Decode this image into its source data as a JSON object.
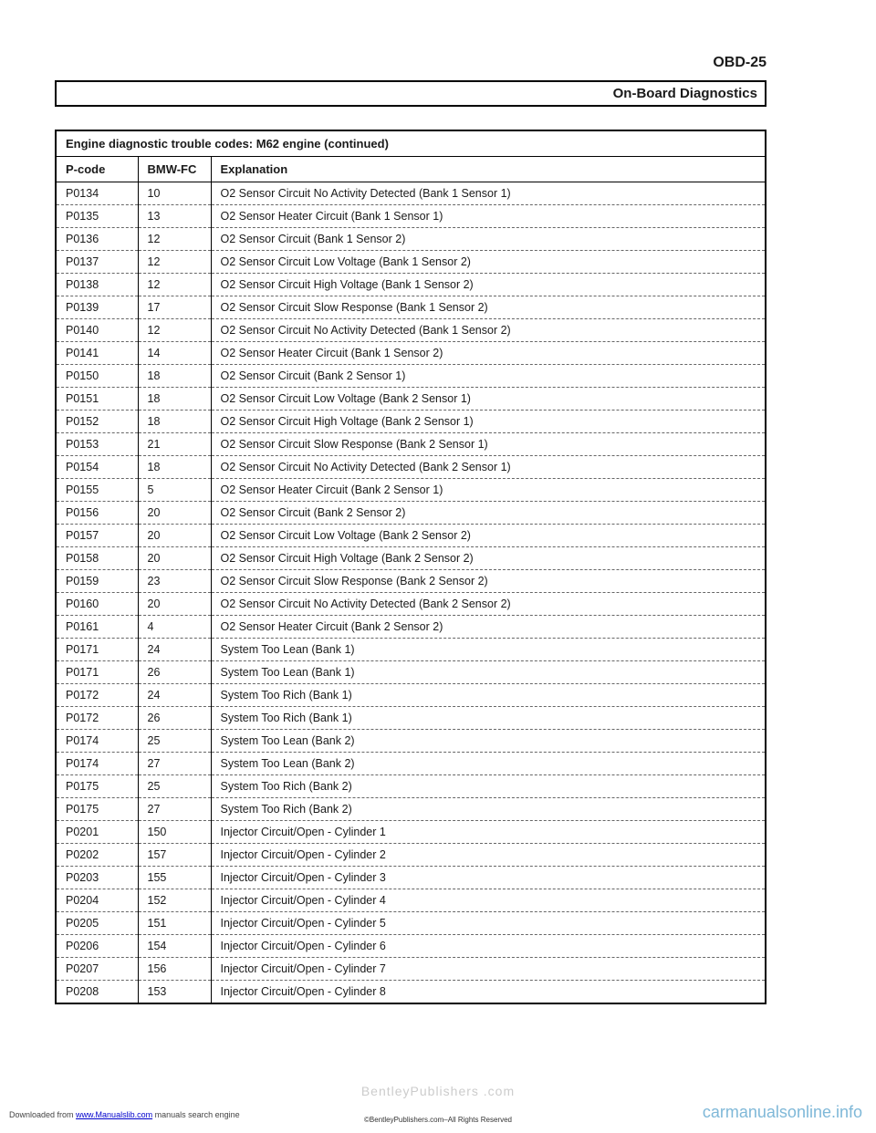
{
  "header": {
    "page_id": "OBD-25",
    "section_title": "On-Board Diagnostics"
  },
  "table": {
    "title": "Engine diagnostic trouble codes: M62 engine (continued)",
    "columns": [
      "P-code",
      "BMW-FC",
      "Explanation"
    ],
    "rows": [
      [
        "P0134",
        "10",
        "O2 Sensor Circuit No Activity Detected (Bank 1 Sensor 1)"
      ],
      [
        "P0135",
        "13",
        "O2 Sensor Heater Circuit (Bank 1 Sensor 1)"
      ],
      [
        "P0136",
        "12",
        "O2 Sensor Circuit (Bank 1 Sensor 2)"
      ],
      [
        "P0137",
        "12",
        "O2 Sensor Circuit Low Voltage (Bank 1 Sensor 2)"
      ],
      [
        "P0138",
        "12",
        "O2 Sensor Circuit High Voltage (Bank 1 Sensor 2)"
      ],
      [
        "P0139",
        "17",
        "O2 Sensor Circuit Slow Response (Bank 1 Sensor 2)"
      ],
      [
        "P0140",
        "12",
        "O2 Sensor Circuit No Activity Detected (Bank 1 Sensor 2)"
      ],
      [
        "P0141",
        "14",
        "O2 Sensor Heater Circuit (Bank 1 Sensor 2)"
      ],
      [
        "P0150",
        "18",
        "O2 Sensor Circuit (Bank 2 Sensor 1)"
      ],
      [
        "P0151",
        "18",
        "O2 Sensor Circuit Low Voltage (Bank 2 Sensor 1)"
      ],
      [
        "P0152",
        "18",
        "O2 Sensor Circuit High Voltage (Bank 2 Sensor 1)"
      ],
      [
        "P0153",
        "21",
        "O2 Sensor Circuit Slow Response (Bank 2 Sensor 1)"
      ],
      [
        "P0154",
        "18",
        "O2 Sensor Circuit No Activity Detected (Bank 2 Sensor 1)"
      ],
      [
        "P0155",
        "5",
        "O2 Sensor Heater Circuit (Bank 2 Sensor 1)"
      ],
      [
        "P0156",
        "20",
        "O2 Sensor Circuit (Bank 2 Sensor 2)"
      ],
      [
        "P0157",
        "20",
        "O2 Sensor Circuit Low Voltage (Bank 2 Sensor 2)"
      ],
      [
        "P0158",
        "20",
        "O2 Sensor Circuit High Voltage (Bank 2 Sensor 2)"
      ],
      [
        "P0159",
        "23",
        "O2 Sensor Circuit Slow Response (Bank 2 Sensor 2)"
      ],
      [
        "P0160",
        "20",
        "O2 Sensor Circuit No Activity Detected (Bank 2 Sensor 2)"
      ],
      [
        "P0161",
        "4",
        "O2 Sensor Heater Circuit (Bank 2 Sensor 2)"
      ],
      [
        "P0171",
        "24",
        "System Too Lean (Bank 1)"
      ],
      [
        "P0171",
        "26",
        "System Too Lean (Bank 1)"
      ],
      [
        "P0172",
        "24",
        "System Too Rich (Bank 1)"
      ],
      [
        "P0172",
        "26",
        "System Too Rich (Bank 1)"
      ],
      [
        "P0174",
        "25",
        "System Too Lean (Bank 2)"
      ],
      [
        "P0174",
        "27",
        "System Too Lean (Bank 2)"
      ],
      [
        "P0175",
        "25",
        "System Too Rich (Bank 2)"
      ],
      [
        "P0175",
        "27",
        "System Too Rich (Bank 2)"
      ],
      [
        "P0201",
        "150",
        "Injector Circuit/Open - Cylinder 1"
      ],
      [
        "P0202",
        "157",
        "Injector Circuit/Open - Cylinder 2"
      ],
      [
        "P0203",
        "155",
        "Injector Circuit/Open - Cylinder 3"
      ],
      [
        "P0204",
        "152",
        "Injector Circuit/Open - Cylinder 4"
      ],
      [
        "P0205",
        "151",
        "Injector Circuit/Open - Cylinder 5"
      ],
      [
        "P0206",
        "154",
        "Injector Circuit/Open - Cylinder 6"
      ],
      [
        "P0207",
        "156",
        "Injector Circuit/Open - Cylinder 7"
      ],
      [
        "P0208",
        "153",
        "Injector Circuit/Open - Cylinder 8"
      ]
    ]
  },
  "footer": {
    "watermark": "BentleyPublishers .com",
    "download_prefix": "Downloaded from ",
    "download_link": "www.Manualslib.com",
    "download_suffix": " manuals search engine",
    "copyright": "©BentleyPublishers.com–All Rights Reserved",
    "site_watermark": "carmanualsonline.info"
  }
}
